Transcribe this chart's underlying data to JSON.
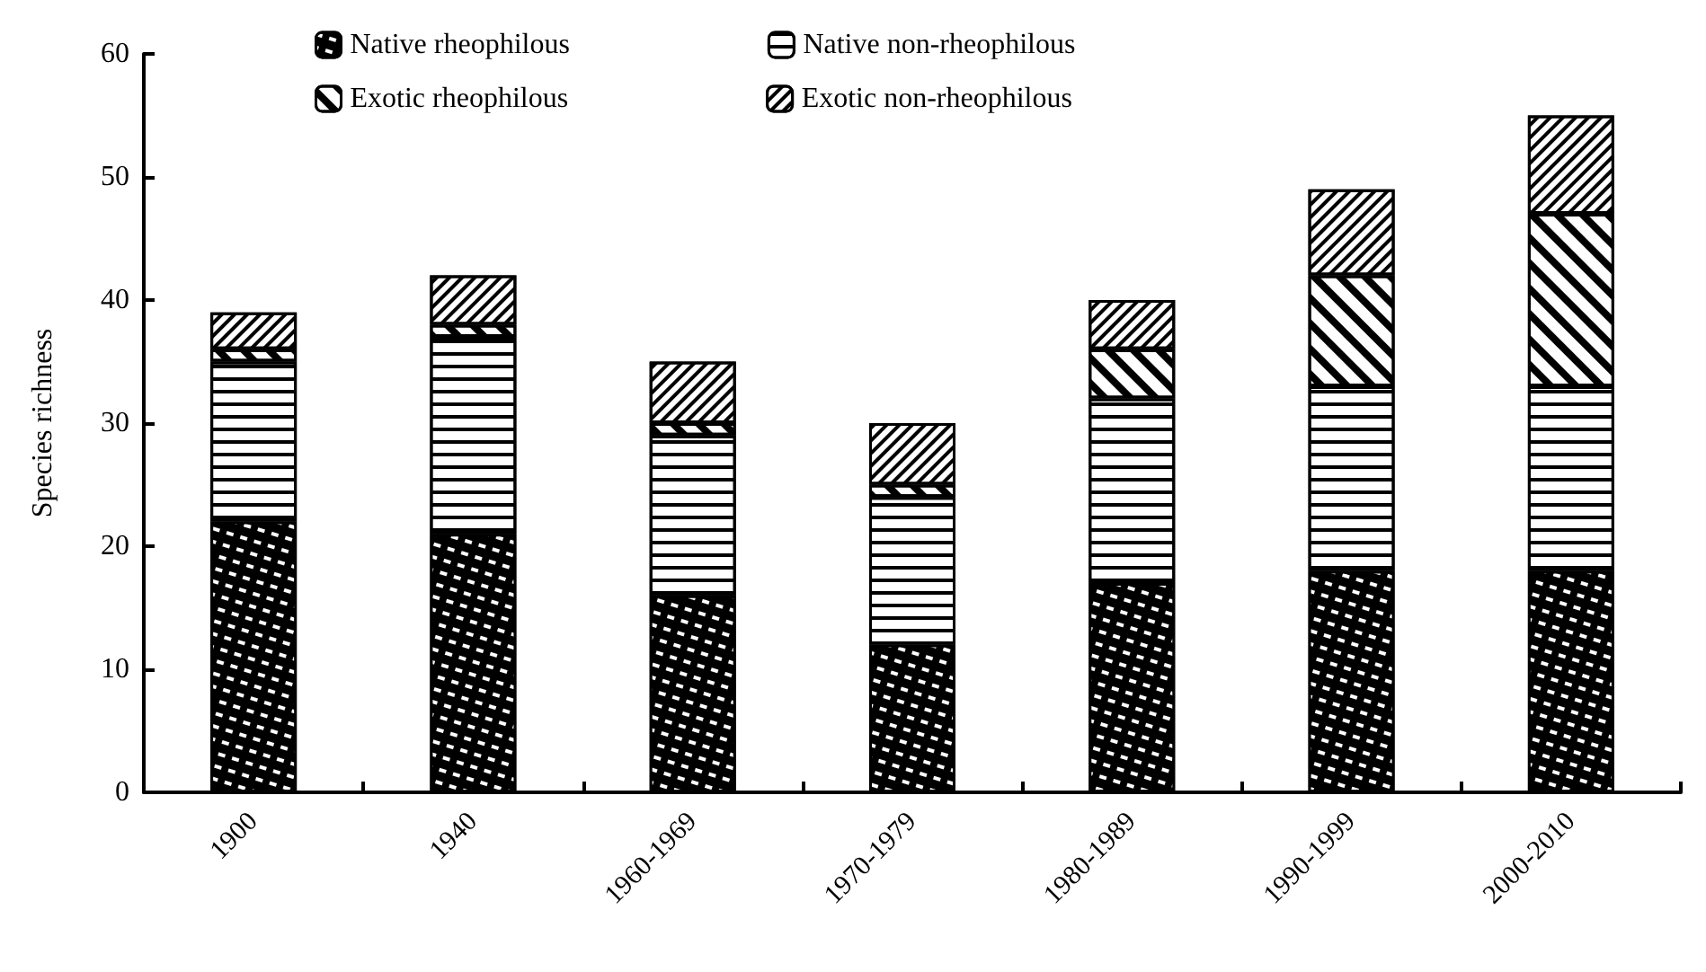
{
  "chart_data": {
    "type": "bar",
    "ylabel": "Species richness",
    "categories": [
      "1900",
      "1940",
      "1960-1969",
      "1970-1979",
      "1980-1989",
      "1990-1999",
      "2000-2010"
    ],
    "stacked": true,
    "series": [
      {
        "name": "Native rheophilous",
        "color": "#000000",
        "values": [
          22,
          21,
          16,
          12,
          17,
          18,
          18
        ]
      },
      {
        "name": "Native non-rheophilous",
        "color": "#ffffff",
        "values": [
          13,
          16,
          13,
          12,
          15,
          15,
          15
        ]
      },
      {
        "name": "Exotic rheophilous",
        "color": "#ffffff",
        "values": [
          1,
          1,
          1,
          1,
          4,
          9,
          14
        ]
      },
      {
        "name": "Exotic non-rheophilous",
        "color": "#ffffff",
        "values": [
          3,
          4,
          5,
          5,
          4,
          7,
          8
        ]
      }
    ],
    "ylim": [
      0,
      60
    ],
    "yticks": [
      0,
      10,
      20,
      30,
      40,
      50,
      60
    ],
    "grid": false,
    "legend": "top"
  }
}
